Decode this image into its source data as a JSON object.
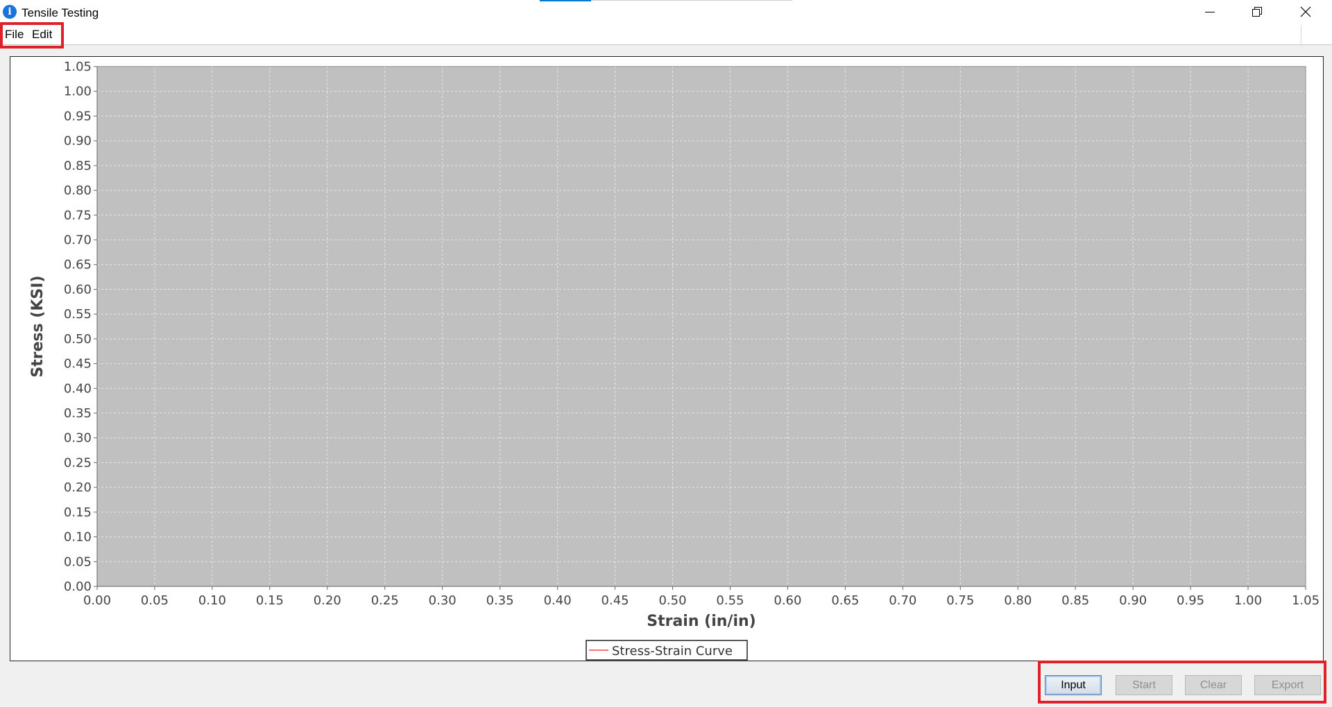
{
  "window": {
    "title": "Tensile Testing",
    "icon": "info-icon",
    "controls": [
      "minimize-icon",
      "restore-icon",
      "close-icon"
    ]
  },
  "menu": {
    "file_label": "File",
    "edit_label": "Edit"
  },
  "chart_data": {
    "type": "line",
    "title": "",
    "xlabel": "Strain (in/in)",
    "ylabel": "Stress (KSI)",
    "xlim": [
      0,
      1.05
    ],
    "ylim": [
      0,
      1.05
    ],
    "tick_step": 0.05,
    "grid": true,
    "plot_background": "#c0c0c0",
    "legend_position": "bottom-center",
    "series": [
      {
        "name": "Stress-Strain Curve",
        "color": "#ff4040",
        "x": [],
        "y": []
      }
    ]
  },
  "buttons": {
    "input_label": "Input",
    "start_label": "Start",
    "clear_label": "Clear",
    "export_label": "Export"
  },
  "colors": {
    "highlight": "#e0202a",
    "accent": "#0078d7"
  }
}
